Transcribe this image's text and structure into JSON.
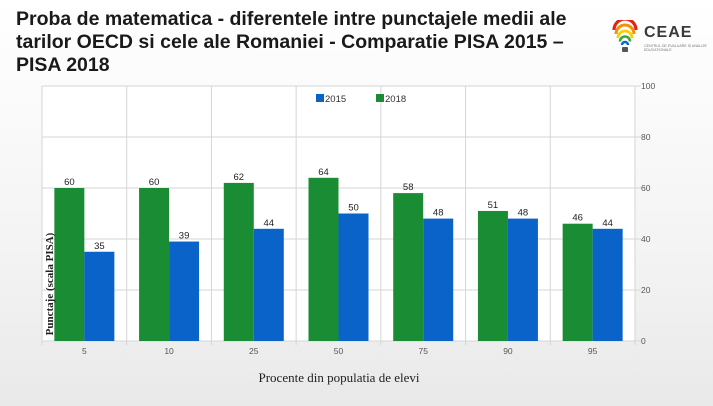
{
  "page": {
    "title": "Proba de matematica - diferentele intre punctajele medii ale tarilor OECD si cele ale Romaniei - Comparatie  PISA 2015 – PISA 2018"
  },
  "logo": {
    "name": "CEAE",
    "subtitle": "Centrul de Evaluare si Analize Educationale"
  },
  "chart_data": {
    "type": "bar",
    "title": "Proba de matematica - diferentele intre punctajele medii ale tarilor OECD si cele ale Romaniei - Comparatie  PISA 2015 – PISA 2018",
    "xlabel": "Procente din populatia de elevi",
    "ylabel": "Punctaje  (scala PISA)",
    "categories": [
      "5",
      "10",
      "25",
      "50",
      "75",
      "90",
      "95"
    ],
    "series": [
      {
        "name": "2015",
        "color": "#0a63c8",
        "values": [
          35,
          39,
          44,
          50,
          48,
          48,
          44
        ]
      },
      {
        "name": "2018",
        "color": "#1a8c34",
        "values": [
          60,
          60,
          62,
          64,
          58,
          51,
          46
        ]
      }
    ],
    "ylim": [
      0,
      100
    ],
    "yticks": [
      0,
      20,
      40,
      60,
      80,
      100
    ],
    "bar_order": [
      "2018",
      "2015"
    ],
    "grid": true,
    "legend_position": "top-center",
    "y_axis_side": "right"
  }
}
